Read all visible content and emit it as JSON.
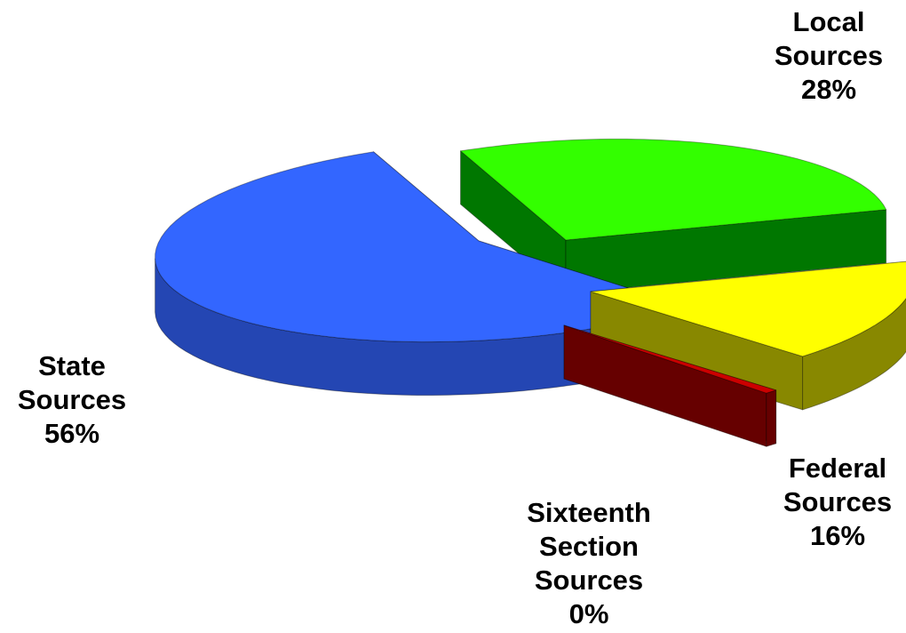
{
  "chart_data": {
    "type": "pie",
    "title": "",
    "slices": [
      {
        "label_lines": [
          "Local",
          "Sources"
        ],
        "percent_label": "28%",
        "value": 28,
        "color": "#33ff00",
        "side_color": "#007700"
      },
      {
        "label_lines": [
          "Federal",
          "Sources"
        ],
        "percent_label": "16%",
        "value": 16,
        "color": "#ffff00",
        "side_color": "#888800"
      },
      {
        "label_lines": [
          "Sixteenth",
          "Section",
          "Sources"
        ],
        "percent_label": "0%",
        "value": 0.2,
        "color": "#cc0000",
        "side_color": "#660000"
      },
      {
        "label_lines": [
          "State",
          "Sources"
        ],
        "percent_label": "56%",
        "value": 56,
        "color": "#3366ff",
        "side_color": "#2446b3"
      }
    ]
  }
}
